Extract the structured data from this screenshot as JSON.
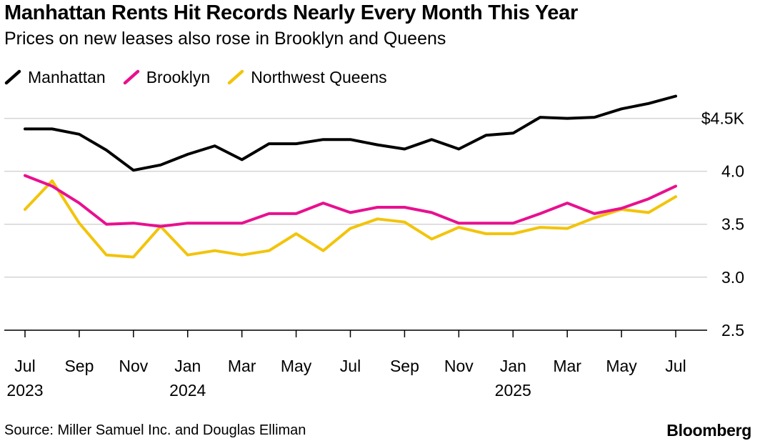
{
  "chart_data": {
    "type": "line",
    "title": "Manhattan Rents Hit Records Nearly Every Month This Year",
    "subtitle": "Prices on new leases also rose in Brooklyn and Queens",
    "x": [
      "2023-07",
      "2023-08",
      "2023-09",
      "2023-10",
      "2023-11",
      "2023-12",
      "2024-01",
      "2024-02",
      "2024-03",
      "2024-04",
      "2024-05",
      "2024-06",
      "2024-07",
      "2024-08",
      "2024-09",
      "2024-10",
      "2024-11",
      "2024-12",
      "2025-01",
      "2025-02",
      "2025-03",
      "2025-04",
      "2025-05",
      "2025-06",
      "2025-07"
    ],
    "x_tick_labels": [
      {
        "month": "Jul",
        "year": "2023"
      },
      {
        "month": "Sep",
        "year": ""
      },
      {
        "month": "Nov",
        "year": ""
      },
      {
        "month": "Jan",
        "year": "2024"
      },
      {
        "month": "Mar",
        "year": ""
      },
      {
        "month": "May",
        "year": ""
      },
      {
        "month": "Jul",
        "year": ""
      },
      {
        "month": "Sep",
        "year": ""
      },
      {
        "month": "Nov",
        "year": ""
      },
      {
        "month": "Jan",
        "year": "2025"
      },
      {
        "month": "Mar",
        "year": ""
      },
      {
        "month": "May",
        "year": ""
      },
      {
        "month": "Jul",
        "year": ""
      }
    ],
    "y_ticks": [
      {
        "value": 2.5,
        "label": "2.5"
      },
      {
        "value": 3.0,
        "label": "3.0"
      },
      {
        "value": 3.5,
        "label": "3.5"
      },
      {
        "value": 4.0,
        "label": "4.0"
      },
      {
        "value": 4.5,
        "label": "$4.5K"
      }
    ],
    "ylim": [
      2.33,
      4.72
    ],
    "grid": true,
    "legend_position": "top-left",
    "series": [
      {
        "name": "Manhattan",
        "color": "#000000",
        "values": [
          4.4,
          4.4,
          4.35,
          4.2,
          4.01,
          4.06,
          4.16,
          4.24,
          4.11,
          4.26,
          4.26,
          4.3,
          4.3,
          4.25,
          4.21,
          4.3,
          4.21,
          4.34,
          4.36,
          4.51,
          4.5,
          4.51,
          4.59,
          4.64,
          4.71
        ]
      },
      {
        "name": "Brooklyn",
        "color": "#e8108f",
        "values": [
          3.96,
          3.86,
          3.7,
          3.5,
          3.51,
          3.48,
          3.51,
          3.51,
          3.51,
          3.6,
          3.6,
          3.7,
          3.61,
          3.66,
          3.66,
          3.61,
          3.51,
          3.51,
          3.51,
          3.6,
          3.7,
          3.6,
          3.65,
          3.74,
          3.86
        ]
      },
      {
        "name": "Northwest Queens",
        "color": "#f2c40b",
        "values": [
          3.64,
          3.91,
          3.51,
          3.21,
          3.19,
          3.48,
          3.21,
          3.25,
          3.21,
          3.25,
          3.41,
          3.25,
          3.46,
          3.55,
          3.52,
          3.36,
          3.47,
          3.41,
          3.41,
          3.47,
          3.46,
          3.56,
          3.64,
          3.61,
          3.76
        ]
      }
    ]
  },
  "footer": {
    "source": "Source: Miller Samuel Inc. and Douglas Elliman",
    "brand": "Bloomberg"
  }
}
